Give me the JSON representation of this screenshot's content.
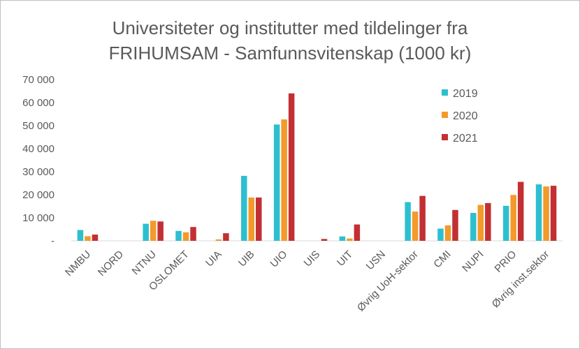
{
  "chart_data": {
    "type": "bar",
    "title_line1": "Universiteter og institutter med tildelinger fra",
    "title_line2": "FRIHUMSAM - Samfunnsvitenskap (1000 kr)",
    "xlabel": "",
    "ylabel": "",
    "ylim": [
      0,
      70000
    ],
    "ytick_labels": [
      "-",
      "10 000",
      "20 000",
      "30 000",
      "40 000",
      "50 000",
      "60 000",
      "70 000"
    ],
    "grid": false,
    "legend_position": "top-right",
    "categories": [
      "NMBU",
      "NORD",
      "NTNU",
      "OSLOMET",
      "UIA",
      "UIB",
      "UIO",
      "UIS",
      "UIT",
      "USN",
      "Øvrig UoH-sektor",
      "CMI",
      "NUPI",
      "PRIO",
      "Øvrig inst.sektor"
    ],
    "series": [
      {
        "name": "2019",
        "color": "#2EBFCF",
        "values": [
          4700,
          0,
          7400,
          4300,
          0,
          28200,
          50500,
          0,
          1900,
          0,
          16800,
          5300,
          12100,
          15200,
          24500
        ]
      },
      {
        "name": "2020",
        "color": "#F39A2B",
        "values": [
          2000,
          0,
          8700,
          3700,
          600,
          18800,
          52700,
          0,
          1000,
          0,
          12700,
          6700,
          15600,
          19900,
          23600
        ]
      },
      {
        "name": "2021",
        "color": "#C23034",
        "values": [
          2700,
          0,
          8400,
          6000,
          3300,
          18800,
          64000,
          800,
          7100,
          0,
          19500,
          13400,
          16400,
          25600,
          23900
        ]
      }
    ]
  }
}
